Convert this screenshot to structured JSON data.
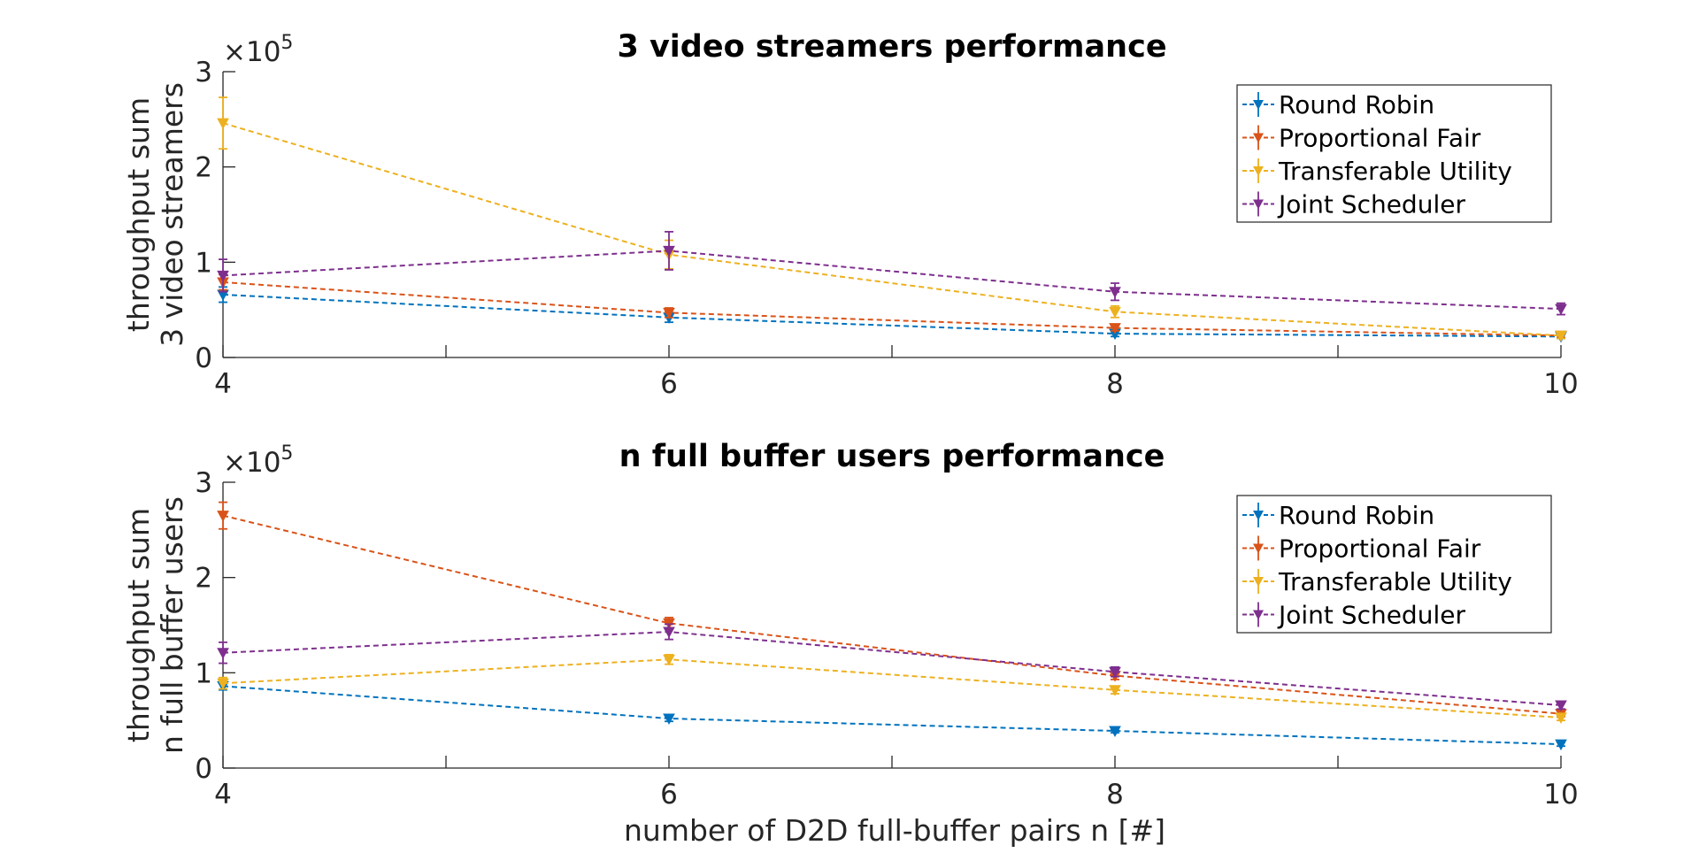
{
  "figure": {
    "xlabel": "number of D2D full-buffer pairs n [#]"
  },
  "colors": {
    "Round Robin": "#0072BD",
    "Proportional Fair": "#D95319",
    "Transferable Utility": "#EDB120",
    "Joint Scheduler": "#7E2F8E"
  },
  "chart_data": [
    {
      "type": "line",
      "title": "3 video streamers performance",
      "ylabel_lines": [
        "throughput sum",
        "3 video streamers"
      ],
      "exponent_label": "×10",
      "exponent_power": "5",
      "x": [
        4,
        6,
        8,
        10
      ],
      "xlim": [
        4,
        10
      ],
      "ylim": [
        0,
        300000
      ],
      "xticks": [
        4,
        6,
        8,
        10
      ],
      "xminor_ticks": [
        5,
        7,
        9
      ],
      "yticks": [
        0,
        100000,
        200000,
        300000
      ],
      "ytick_labels": [
        "0",
        "1",
        "2",
        "3"
      ],
      "legend_position": "top-right",
      "line_style": "dashed with error bars",
      "series": [
        {
          "name": "Round Robin",
          "values": [
            66000,
            42000,
            25000,
            22000
          ],
          "errors": [
            8000,
            5000,
            3000,
            2000
          ]
        },
        {
          "name": "Proportional Fair",
          "values": [
            79000,
            47000,
            31000,
            23000
          ],
          "errors": [
            8000,
            5000,
            3000,
            2000
          ]
        },
        {
          "name": "Transferable Utility",
          "values": [
            246000,
            108000,
            48000,
            23000
          ],
          "errors": [
            27000,
            15000,
            6000,
            3000
          ]
        },
        {
          "name": "Joint Scheduler",
          "values": [
            86000,
            112000,
            69000,
            51000
          ],
          "errors": [
            17000,
            20000,
            9000,
            6000
          ]
        }
      ]
    },
    {
      "type": "line",
      "title": "n full buffer users performance",
      "ylabel_lines": [
        "throughput sum",
        "n full buffer users"
      ],
      "exponent_label": "×10",
      "exponent_power": "5",
      "x": [
        4,
        6,
        8,
        10
      ],
      "xlim": [
        4,
        10
      ],
      "ylim": [
        0,
        300000
      ],
      "xticks": [
        4,
        6,
        8,
        10
      ],
      "xminor_ticks": [
        5,
        7,
        9
      ],
      "yticks": [
        0,
        100000,
        200000,
        300000
      ],
      "ytick_labels": [
        "0",
        "1",
        "2",
        "3"
      ],
      "legend_position": "top-right",
      "line_style": "dashed with error bars",
      "series": [
        {
          "name": "Round Robin",
          "values": [
            86000,
            52000,
            39000,
            25000
          ],
          "errors": [
            4000,
            3000,
            2000,
            2000
          ]
        },
        {
          "name": "Proportional Fair",
          "values": [
            265000,
            152000,
            97000,
            57000
          ],
          "errors": [
            14000,
            6000,
            4000,
            3000
          ]
        },
        {
          "name": "Transferable Utility",
          "values": [
            89000,
            114000,
            82000,
            53000
          ],
          "errors": [
            6000,
            5000,
            4000,
            3000
          ]
        },
        {
          "name": "Joint Scheduler",
          "values": [
            121000,
            143000,
            101000,
            66000
          ],
          "errors": [
            11000,
            8000,
            5000,
            4000
          ]
        }
      ]
    }
  ]
}
